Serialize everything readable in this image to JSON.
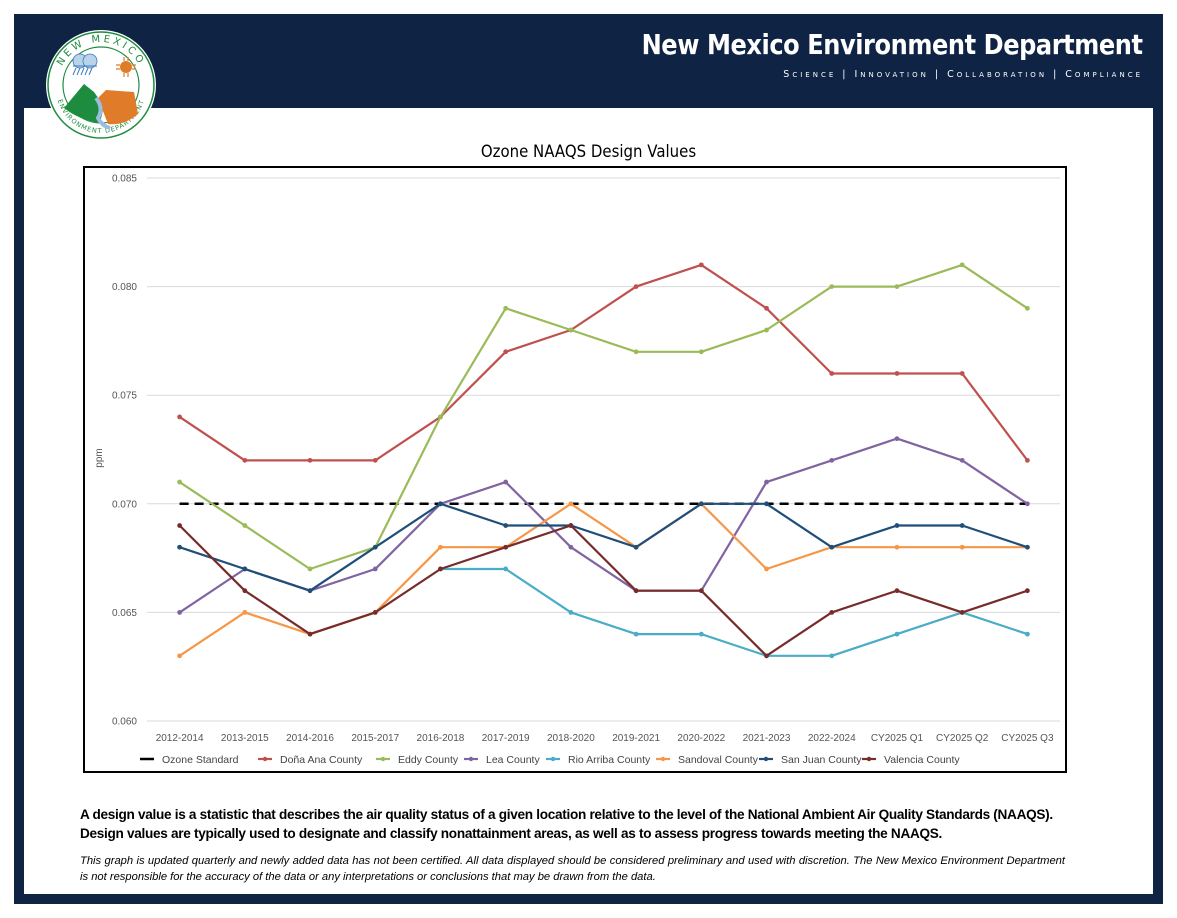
{
  "header": {
    "title": "New Mexico Environment Department",
    "tagline": "Science | Innovation | Collaboration | Compliance",
    "logo_top_text": "NEW MEXICO",
    "logo_bottom_text": "ENVIRONMENT DEPARTMENT"
  },
  "colors": {
    "navy": "#0f2345",
    "ozone_standard": "#000000",
    "dona_ana": "#c0504d",
    "eddy": "#9bbb59",
    "lea": "#8064a2",
    "rio_arriba": "#4bacc6",
    "sandoval": "#f79646",
    "san_juan": "#1f4e79",
    "valencia": "#772c2a"
  },
  "chart_data": {
    "type": "line",
    "title": "Ozone NAAQS Design Values",
    "xlabel": "",
    "ylabel": "ppm",
    "ylim": [
      0.06,
      0.085
    ],
    "yticks": [
      "0.060",
      "0.065",
      "0.070",
      "0.075",
      "0.080",
      "0.085"
    ],
    "grid": true,
    "legend_position": "bottom",
    "categories": [
      "2012-2014",
      "2013-2015",
      "2014-2016",
      "2015-2017",
      "2016-2018",
      "2017-2019",
      "2018-2020",
      "2019-2021",
      "2020-2022",
      "2021-2023",
      "2022-2024",
      "CY2025 Q1",
      "CY2025 Q2",
      "CY2025 Q3"
    ],
    "series": [
      {
        "name": "Ozone Standard",
        "color": "#000000",
        "dashed": true,
        "markers": false,
        "values": [
          0.07,
          0.07,
          0.07,
          0.07,
          0.07,
          0.07,
          0.07,
          0.07,
          0.07,
          0.07,
          0.07,
          0.07,
          0.07,
          0.07
        ]
      },
      {
        "name": "Doña Ana County",
        "color": "#c0504d",
        "values": [
          0.074,
          0.072,
          0.072,
          0.072,
          0.074,
          0.077,
          0.078,
          0.08,
          0.081,
          0.079,
          0.076,
          0.076,
          0.076,
          0.072
        ]
      },
      {
        "name": "Eddy County",
        "color": "#9bbb59",
        "values": [
          0.071,
          0.069,
          0.067,
          0.068,
          0.074,
          0.079,
          0.078,
          0.077,
          0.077,
          0.078,
          0.08,
          0.08,
          0.081,
          0.079
        ]
      },
      {
        "name": "Lea County",
        "color": "#8064a2",
        "values": [
          0.065,
          0.067,
          0.066,
          0.067,
          0.07,
          0.071,
          0.068,
          0.066,
          0.066,
          0.071,
          0.072,
          0.073,
          0.072,
          0.07
        ]
      },
      {
        "name": "Rio Arriba County",
        "color": "#4bacc6",
        "values": [
          null,
          null,
          null,
          null,
          0.067,
          0.067,
          0.065,
          0.064,
          0.064,
          0.063,
          0.063,
          0.064,
          0.065,
          0.064
        ]
      },
      {
        "name": "Sandoval County",
        "color": "#f79646",
        "values": [
          0.063,
          0.065,
          0.064,
          0.065,
          0.068,
          0.068,
          0.07,
          0.068,
          0.07,
          0.067,
          0.068,
          0.068,
          0.068,
          0.068
        ]
      },
      {
        "name": "San Juan County",
        "color": "#1f4e79",
        "values": [
          0.068,
          0.067,
          0.066,
          0.068,
          0.07,
          0.069,
          0.069,
          0.068,
          0.07,
          0.07,
          0.068,
          0.069,
          0.069,
          0.068
        ]
      },
      {
        "name": "Valencia County",
        "color": "#772c2a",
        "values": [
          0.069,
          0.066,
          0.064,
          0.065,
          0.067,
          0.068,
          0.069,
          0.066,
          0.066,
          0.063,
          0.065,
          0.066,
          0.065,
          0.066
        ]
      }
    ]
  },
  "notes": {
    "description": "A design value is a statistic that describes the air quality status of a given location relative to the level of the National Ambient Air Quality Standards (NAAQS). Design values are typically used to designate and classify nonattainment areas, as well as to assess progress towards meeting the NAAQS.",
    "disclaimer": "This graph is updated quarterly and newly added data has not been certified. All data displayed should be considered preliminary and used with discretion. The New Mexico Environment Department is not responsible for the accuracy of the data or any interpretations or conclusions that may be drawn from the data."
  }
}
